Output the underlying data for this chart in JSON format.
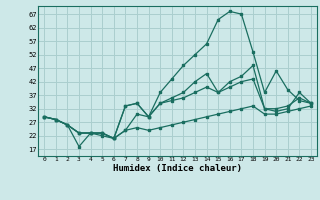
{
  "background_color": "#cde8e8",
  "grid_color": "#aacece",
  "line_color": "#1a6e60",
  "xlabel": "Humidex (Indice chaleur)",
  "ylabel_ticks": [
    17,
    22,
    27,
    32,
    37,
    42,
    47,
    52,
    57,
    62,
    67
  ],
  "xlim": [
    -0.5,
    23.5
  ],
  "ylim": [
    14.5,
    70
  ],
  "xticks": [
    0,
    1,
    2,
    3,
    4,
    5,
    6,
    7,
    8,
    9,
    10,
    11,
    12,
    13,
    14,
    15,
    16,
    17,
    18,
    19,
    20,
    21,
    22,
    23
  ],
  "line1_x": [
    0,
    1,
    2,
    3,
    4,
    5,
    6,
    7,
    8,
    9,
    10,
    11,
    12,
    13,
    14,
    15,
    16,
    17,
    18,
    19,
    20,
    21,
    22,
    23
  ],
  "line1_y": [
    29,
    28,
    26,
    18,
    23,
    23,
    21,
    24,
    30,
    29,
    38,
    43,
    48,
    52,
    56,
    65,
    68,
    67,
    53,
    38,
    46,
    39,
    35,
    34
  ],
  "line2_x": [
    0,
    1,
    2,
    3,
    4,
    5,
    6,
    7,
    8,
    9,
    10,
    11,
    12,
    13,
    14,
    15,
    16,
    17,
    18,
    19,
    20,
    21,
    22,
    23
  ],
  "line2_y": [
    29,
    28,
    26,
    23,
    23,
    23,
    21,
    33,
    34,
    29,
    34,
    36,
    38,
    42,
    45,
    38,
    42,
    44,
    48,
    32,
    31,
    32,
    38,
    34
  ],
  "line3_x": [
    0,
    1,
    2,
    3,
    4,
    5,
    6,
    7,
    8,
    9,
    10,
    11,
    12,
    13,
    14,
    15,
    16,
    17,
    18,
    19,
    20,
    21,
    22,
    23
  ],
  "line3_y": [
    29,
    28,
    26,
    23,
    23,
    23,
    21,
    33,
    34,
    29,
    34,
    35,
    36,
    38,
    40,
    38,
    40,
    42,
    43,
    32,
    32,
    33,
    36,
    34
  ],
  "line4_x": [
    0,
    1,
    2,
    3,
    4,
    5,
    6,
    7,
    8,
    9,
    10,
    11,
    12,
    13,
    14,
    15,
    16,
    17,
    18,
    19,
    20,
    21,
    22,
    23
  ],
  "line4_y": [
    29,
    28,
    26,
    23,
    23,
    22,
    21,
    24,
    25,
    24,
    25,
    26,
    27,
    28,
    29,
    30,
    31,
    32,
    33,
    30,
    30,
    31,
    32,
    33
  ]
}
